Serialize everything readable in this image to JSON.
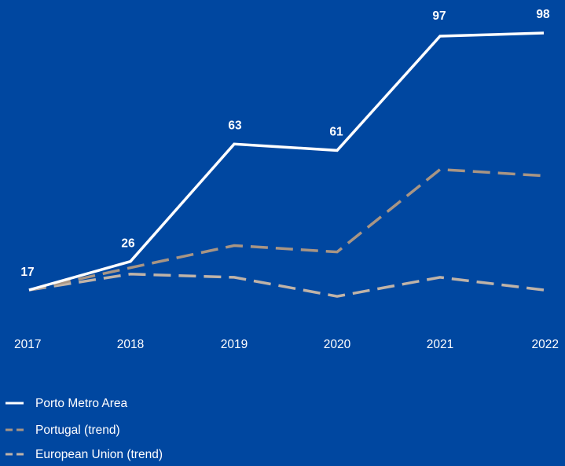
{
  "chart_data": {
    "type": "line",
    "title": "",
    "xlabel": "",
    "ylabel": "",
    "x": [
      "2017",
      "2018",
      "2019",
      "2020",
      "2021",
      "2022"
    ],
    "ylim": [
      0,
      100
    ],
    "grid": false,
    "legend_position": "bottom-left",
    "series": [
      {
        "name": "Porto Metro Area",
        "values": [
          17,
          26,
          63,
          61,
          97,
          98
        ],
        "color": "#FFFFFF",
        "style": "solid",
        "data_labels": [
          "17",
          "26",
          "63",
          "61",
          "97",
          "98"
        ]
      },
      {
        "name": "Portugal (trend)",
        "values": [
          17,
          24,
          31,
          29,
          55,
          53
        ],
        "color": "#A89584",
        "style": "dashed"
      },
      {
        "name": "European Union (trend)",
        "values": [
          17,
          22,
          21,
          15,
          21,
          17
        ],
        "color": "#BFB3A8",
        "style": "dashed"
      }
    ]
  },
  "colors": {
    "background": "#0047A0"
  }
}
